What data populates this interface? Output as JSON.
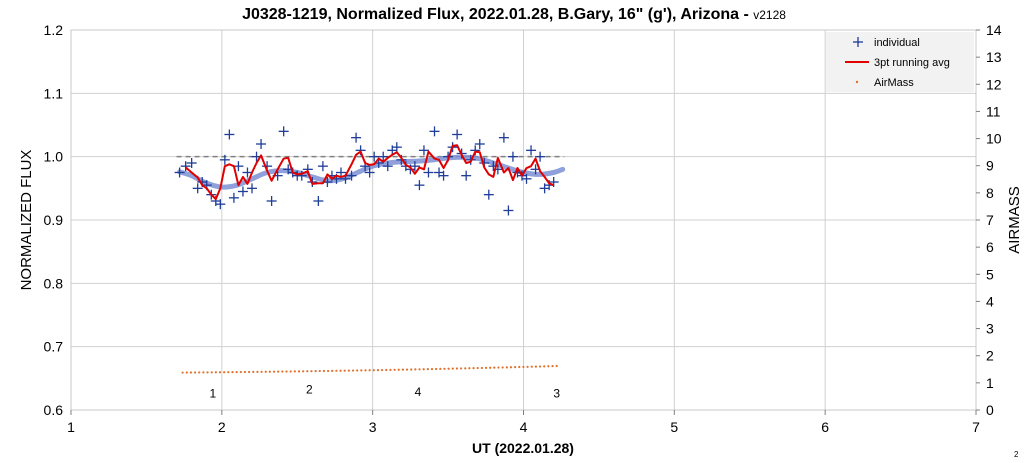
{
  "chart_data": {
    "type": "scatter",
    "title": "J0328-1219, Normalized Flux, 2022.01.28, B.Gary, 16\" (g'), Arizona - ",
    "version": "v2128",
    "xlabel": "UT (2022.01.28)",
    "ylabel": "NORMALIZED FLUX",
    "y2label": "AIRMASS",
    "xlim": [
      1,
      7
    ],
    "ylim": [
      0.6,
      1.2
    ],
    "y2lim": [
      0,
      14
    ],
    "xticks": [
      "1",
      "2",
      "3",
      "4",
      "5",
      "6",
      "7"
    ],
    "yticks": [
      "0.6",
      "0.7",
      "0.8",
      "0.9",
      "1.0",
      "1.1",
      "1.2"
    ],
    "y2ticks": [
      "0",
      "1",
      "2",
      "3",
      "4",
      "5",
      "6",
      "7",
      "8",
      "9",
      "10",
      "11",
      "12",
      "13",
      "14"
    ],
    "grid": true,
    "legend_position": "top-right",
    "reference_level": 1.0,
    "reference_range": [
      1.7,
      4.27
    ],
    "colors": {
      "individual": "#1f3d99",
      "running": "#e00000",
      "model": "#7b8fd4",
      "airmass": "#e0702a",
      "reference": "#808080"
    },
    "series": [
      {
        "name": "individual",
        "x": [
          1.72,
          1.76,
          1.8,
          1.84,
          1.87,
          1.9,
          1.93,
          1.96,
          1.99,
          2.02,
          2.05,
          2.08,
          2.11,
          2.14,
          2.17,
          2.2,
          2.23,
          2.26,
          2.3,
          2.33,
          2.37,
          2.41,
          2.44,
          2.47,
          2.5,
          2.53,
          2.57,
          2.6,
          2.64,
          2.67,
          2.7,
          2.73,
          2.76,
          2.79,
          2.82,
          2.86,
          2.89,
          2.92,
          2.95,
          2.98,
          3.01,
          3.04,
          3.07,
          3.1,
          3.13,
          3.16,
          3.19,
          3.22,
          3.25,
          3.28,
          3.31,
          3.34,
          3.37,
          3.41,
          3.44,
          3.47,
          3.5,
          3.53,
          3.56,
          3.59,
          3.62,
          3.65,
          3.68,
          3.71,
          3.74,
          3.77,
          3.8,
          3.83,
          3.87,
          3.9,
          3.93,
          3.96,
          3.99,
          4.02,
          4.05,
          4.08,
          4.11,
          4.14,
          4.17,
          4.2
        ],
        "y": [
          0.975,
          0.985,
          0.99,
          0.95,
          0.96,
          0.955,
          0.94,
          0.93,
          0.925,
          0.995,
          1.035,
          0.935,
          0.985,
          0.945,
          0.975,
          0.95,
          1.0,
          1.02,
          0.985,
          0.93,
          0.97,
          1.04,
          0.98,
          0.975,
          0.97,
          0.97,
          0.98,
          0.96,
          0.93,
          0.985,
          0.96,
          0.97,
          0.965,
          0.975,
          0.965,
          0.97,
          1.03,
          1.01,
          0.985,
          0.975,
          1.0,
          0.99,
          1.0,
          0.985,
          1.01,
          1.015,
          0.995,
          0.985,
          0.98,
          0.985,
          0.955,
          1.01,
          0.975,
          1.04,
          0.975,
          0.97,
          1.0,
          1.015,
          1.035,
          1.005,
          0.97,
          0.995,
          1.01,
          1.02,
          0.99,
          0.94,
          0.985,
          0.98,
          1.03,
          0.915,
          1.0,
          0.975,
          0.97,
          0.965,
          1.01,
          0.98,
          1.0,
          0.95,
          0.955,
          0.96
        ]
      },
      {
        "name": "3pt running avg",
        "x": [
          1.76,
          1.8,
          1.84,
          1.87,
          1.9,
          1.93,
          1.96,
          1.99,
          2.02,
          2.05,
          2.08,
          2.11,
          2.14,
          2.17,
          2.2,
          2.23,
          2.26,
          2.3,
          2.33,
          2.37,
          2.41,
          2.44,
          2.47,
          2.5,
          2.53,
          2.57,
          2.6,
          2.64,
          2.67,
          2.7,
          2.73,
          2.76,
          2.79,
          2.82,
          2.86,
          2.89,
          2.92,
          2.95,
          2.98,
          3.01,
          3.04,
          3.07,
          3.1,
          3.13,
          3.16,
          3.19,
          3.22,
          3.25,
          3.28,
          3.31,
          3.34,
          3.37,
          3.41,
          3.44,
          3.47,
          3.5,
          3.53,
          3.56,
          3.59,
          3.62,
          3.65,
          3.68,
          3.71,
          3.74,
          3.77,
          3.8,
          3.83,
          3.87,
          3.9,
          3.93,
          3.96,
          3.99,
          4.02,
          4.05,
          4.08,
          4.11,
          4.14,
          4.17,
          4.2
        ],
        "y": [
          0.983,
          0.975,
          0.967,
          0.955,
          0.95,
          0.94,
          0.933,
          0.95,
          0.985,
          0.988,
          0.985,
          0.955,
          0.968,
          0.957,
          0.975,
          0.99,
          1.002,
          0.978,
          0.962,
          0.98,
          0.997,
          0.998,
          0.975,
          0.972,
          0.973,
          0.977,
          0.957,
          0.958,
          0.958,
          0.972,
          0.965,
          0.97,
          0.968,
          0.97,
          0.988,
          1.003,
          1.008,
          0.99,
          0.987,
          0.988,
          0.997,
          0.992,
          0.998,
          1.003,
          1.007,
          0.998,
          0.987,
          0.983,
          0.973,
          0.983,
          0.98,
          1.008,
          0.997,
          0.995,
          0.982,
          0.995,
          1.017,
          1.018,
          1.003,
          0.99,
          0.992,
          1.008,
          1.007,
          0.983,
          0.972,
          0.968,
          0.998,
          0.975,
          0.982,
          0.963,
          0.982,
          0.97,
          0.982,
          0.985,
          0.997,
          0.977,
          0.968,
          0.958,
          0.955
        ]
      },
      {
        "name": "model",
        "x": [
          1.72,
          1.8,
          1.9,
          2.0,
          2.1,
          2.2,
          2.3,
          2.4,
          2.5,
          2.6,
          2.7,
          2.8,
          2.9,
          3.0,
          3.1,
          3.2,
          3.3,
          3.4,
          3.5,
          3.6,
          3.7,
          3.8,
          3.9,
          4.0,
          4.1,
          4.2,
          4.26
        ],
        "y": [
          0.976,
          0.97,
          0.958,
          0.952,
          0.955,
          0.965,
          0.975,
          0.978,
          0.975,
          0.968,
          0.962,
          0.965,
          0.975,
          0.985,
          0.99,
          0.992,
          0.993,
          0.995,
          0.998,
          0.999,
          0.997,
          0.99,
          0.982,
          0.975,
          0.972,
          0.975,
          0.98
        ]
      },
      {
        "name": "AirMass",
        "x_start": 1.74,
        "x_end": 4.22,
        "y_start": 1.38,
        "y_end": 1.62
      }
    ],
    "annotations": [
      {
        "text": "1",
        "x": 1.94,
        "y": 0.62
      },
      {
        "text": "2",
        "x": 2.58,
        "y": 0.626
      },
      {
        "text": "4",
        "x": 3.3,
        "y": 0.622
      },
      {
        "text": "3",
        "x": 4.22,
        "y": 0.62
      }
    ]
  },
  "legend": {
    "individual": "individual",
    "running": "3pt running avg",
    "airmass": "AirMass"
  },
  "page_number": "2"
}
